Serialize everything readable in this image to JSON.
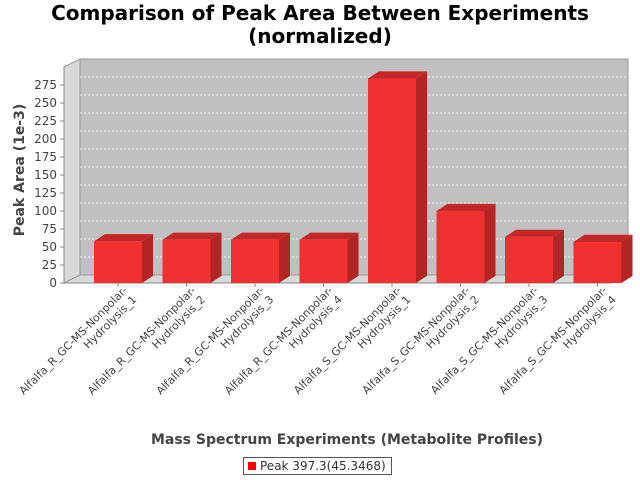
{
  "chart_data": {
    "type": "bar",
    "title_line1": "Comparison of Peak Area Between Experiments",
    "title_line2": "(normalized)",
    "xlabel": "Mass Spectrum Experiments (Metabolite Profiles)",
    "ylabel": "Peak Area (1e-3)",
    "categories": [
      [
        "Alfalfa_R_GC-MS-Nonpolar-",
        "Hydrolysis_1"
      ],
      [
        "Alfalfa_R_GC-MS-Nonpolar-",
        "Hydrolysis_2"
      ],
      [
        "Alfalfa_R_GC-MS-Nonpolar-",
        "Hydrolysis_3"
      ],
      [
        "Alfalfa_R_GC-MS-Nonpolar-",
        "Hydrolysis_4"
      ],
      [
        "Alfalfa_S_GC-MS-Nonpolar-",
        "Hydrolysis_1"
      ],
      [
        "Alfalfa_S_GC-MS-Nonpolar-",
        "Hydrolysis_2"
      ],
      [
        "Alfalfa_S_GC-MS-Nonpolar-",
        "Hydrolysis_3"
      ],
      [
        "Alfalfa_S_GC-MS-Nonpolar-",
        "Hydrolysis_4"
      ]
    ],
    "series": [
      {
        "name": "Peak 397.3(45.3468)",
        "values": [
          58,
          60,
          60,
          60,
          284,
          100,
          64,
          57
        ]
      }
    ],
    "y_ticks": [
      0,
      25,
      50,
      75,
      100,
      125,
      150,
      175,
      200,
      225,
      250,
      275
    ],
    "ylim": [
      0,
      300
    ],
    "grid": true,
    "legend_position": "bottom",
    "colors": {
      "bar_front": "#ef3131",
      "bar_top": "#c42727",
      "bar_side": "#b22525",
      "plot_bg": "#c0c0c0",
      "wall": "#d9d9d9",
      "legend_swatch": "#ff0000"
    }
  }
}
